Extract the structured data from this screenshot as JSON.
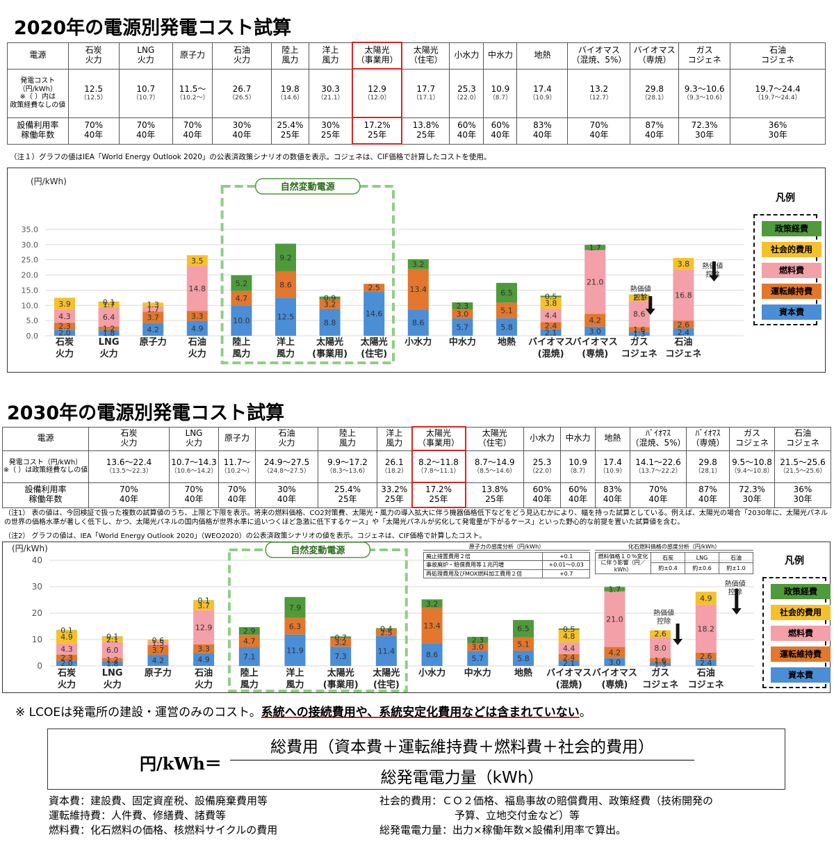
{
  "colors": {
    "policy": "#4f9a3b",
    "social": "#f5c12b",
    "fuel": "#f4a0a8",
    "om": "#e2772d",
    "capital": "#4a8ed6",
    "green_frame": "#8fce84",
    "red": "#e02020"
  },
  "legend": {
    "title": "凡例",
    "items": [
      "政策経費",
      "社会的費用",
      "燃料費",
      "運転維持費",
      "資本費"
    ]
  },
  "s2020": {
    "title": "2020年の電源別発電コスト試算",
    "header": [
      [
        "電源"
      ],
      [
        "石炭",
        "火力"
      ],
      [
        "LNG",
        "火力"
      ],
      [
        "原子力"
      ],
      [
        "石油",
        "火力"
      ],
      [
        "陸上",
        "風力"
      ],
      [
        "洋上",
        "風力"
      ],
      [
        "太陽光",
        "（事業用）"
      ],
      [
        "太陽光",
        "（住宅）"
      ],
      [
        "小水力"
      ],
      [
        "中水力"
      ],
      [
        "地熱"
      ],
      [
        "バイオマス",
        "（混焼、5%）"
      ],
      [
        "バイオマス",
        "（専焼）"
      ],
      [
        "ガス",
        "コジェネ"
      ],
      [
        "石油",
        "コジェネ"
      ]
    ],
    "cost_label": [
      "発電コスト",
      "（円/kWh）",
      "※（ ）内は",
      "政策経費なしの値"
    ],
    "cost": [
      [
        "12.5",
        "（12.5）"
      ],
      [
        "10.7",
        "（10.7）"
      ],
      [
        "11.5～",
        "（10.2～）"
      ],
      [
        "26.7",
        "（26.5）"
      ],
      [
        "19.8",
        "（14.6）"
      ],
      [
        "30.3",
        "（21.1）"
      ],
      [
        "12.9",
        "（12.0）"
      ],
      [
        "17.7",
        "（17.1）"
      ],
      [
        "25.3",
        "（22.0）"
      ],
      [
        "10.9",
        "（8.7）"
      ],
      [
        "17.4",
        "（10.9）"
      ],
      [
        "13.2",
        "（12.7）"
      ],
      [
        "29.8",
        "（28.1）"
      ],
      [
        "9.3～10.6",
        "（9.3～10.6）"
      ],
      [
        "19.7～24.4",
        "（19.7～24.4）"
      ]
    ],
    "util_label": [
      "設備利用率",
      "稼働年数"
    ],
    "util": [
      [
        "70%",
        "40年"
      ],
      [
        "70%",
        "40年"
      ],
      [
        "70%",
        "40年"
      ],
      [
        "30%",
        "40年"
      ],
      [
        "25.4%",
        "25年"
      ],
      [
        "30%",
        "25年"
      ],
      [
        "17.2%",
        "25年"
      ],
      [
        "13.8%",
        "25年"
      ],
      [
        "60%",
        "40年"
      ],
      [
        "60%",
        "40年"
      ],
      [
        "83%",
        "40年"
      ],
      [
        "70%",
        "40年"
      ],
      [
        "87%",
        "40年"
      ],
      [
        "72.3%",
        "30年"
      ],
      [
        "36%",
        "30年"
      ]
    ],
    "note": "（注１）グラフの値はIEA「World Energy Outlook 2020」の公表済政策シナリオの数値を表示。コジェネは、CIF価格で計算したコストを使用。",
    "unit": "(円/kWh)",
    "vre": "自然変動電源"
  },
  "s2030": {
    "title": "2030年の電源別発電コスト試算",
    "header": [
      [
        "電源"
      ],
      [
        "石炭",
        "火力"
      ],
      [
        "LNG",
        "火力"
      ],
      [
        "原子力"
      ],
      [
        "石油",
        "火力"
      ],
      [
        "陸上",
        "風力"
      ],
      [
        "洋上",
        "風力"
      ],
      [
        "太陽光",
        "（事業用）"
      ],
      [
        "太陽光",
        "（住宅）"
      ],
      [
        "小水力"
      ],
      [
        "中水力"
      ],
      [
        "地熱"
      ],
      [
        "ﾊﾞｲｵﾏｽ",
        "（混焼、5%）"
      ],
      [
        "ﾊﾞｲｵﾏｽ",
        "（専焼）"
      ],
      [
        "ガス",
        "コジェネ"
      ],
      [
        "石油",
        "コジェネ"
      ]
    ],
    "cost_label": [
      "発電コスト（円/kWh）",
      "※（ ）は政策経費なしの値"
    ],
    "cost": [
      [
        "13.6～22.4",
        "（13.5～22.3）"
      ],
      [
        "10.7～14.3",
        "（10.6～14.2）"
      ],
      [
        "11.7～",
        "（10.2～）"
      ],
      [
        "24.9～27.5",
        "（24.8～27.5）"
      ],
      [
        "9.9～17.2",
        "（8.3～13.6）"
      ],
      [
        "26.1",
        "（18.2）"
      ],
      [
        "8.2～11.8",
        "（7.8～11.1）"
      ],
      [
        "8.7～14.9",
        "（8.5～14.6）"
      ],
      [
        "25.3",
        "（22.0）"
      ],
      [
        "10.9",
        "（8.7）"
      ],
      [
        "17.4",
        "（10.9）"
      ],
      [
        "14.1～22.6",
        "（13.7～22.2）"
      ],
      [
        "29.8",
        "（28.1）"
      ],
      [
        "9.5～10.8",
        "（9.4～10.8）"
      ],
      [
        "21.5～25.6",
        "（21.5～25.6）"
      ]
    ],
    "util_label": [
      "設備利用率",
      "稼働年数"
    ],
    "util": [
      [
        "70%",
        "40年"
      ],
      [
        "70%",
        "40年"
      ],
      [
        "70%",
        "40年"
      ],
      [
        "30%",
        "40年"
      ],
      [
        "25.4%",
        "25年"
      ],
      [
        "33.2%",
        "25年"
      ],
      [
        "17.2%",
        "25年"
      ],
      [
        "13.8%",
        "25年"
      ],
      [
        "60%",
        "40年"
      ],
      [
        "60%",
        "40年"
      ],
      [
        "83%",
        "40年"
      ],
      [
        "70%",
        "40年"
      ],
      [
        "87%",
        "40年"
      ],
      [
        "72.3%",
        "30年"
      ],
      [
        "36%",
        "30年"
      ]
    ],
    "note1": "（注1） 表の値は、今回検証で扱った複数の試算値のうち、上限と下限を表示。将来の燃料価格、CO2対策費、太陽光・風力の導入拡大に伴う機器価格低下などをどう見込むかにより、幅を持った試算としている。例えば、太陽光の場合「2030年に、太陽光パネルの世界の価格水準が著しく低下し、かつ、太陽光パネルの国内価格が世界水準に追いつくほど急激に低下するケース」や「太陽光パネルが劣化して発電量が下がるケース」といった野心的な前提を置いた試算値を含む。",
    "note2": "（注2） グラフの値は、IEA「World Energy Outlook 2020」（WEO2020）の公表済政策シナリオの値を表示。コジェネは、CIF価格で計算したコスト。",
    "unit": "(円/kWh)",
    "vre": "自然変動電源",
    "nuclear_sens": {
      "title": "原子力の感度分析（円/kWh）",
      "rows": [
        [
          "廃止措置費用２倍",
          "+0.1"
        ],
        [
          "事故廃炉・賠償費用等１兆円増",
          "+0.01～0.03"
        ],
        [
          "再処理費用及びMOX燃料加工費用２倍",
          "+0.7"
        ]
      ]
    },
    "fossil_sens": {
      "title": "化石燃料価格の感度分析（円/kWh）",
      "label": "燃料価格１０％変化に伴う影響（円／kWh）",
      "cols": [
        [
          "石炭",
          "約±0.4"
        ],
        [
          "LNG",
          "約±0.6"
        ],
        [
          "石油",
          "約±1.0"
        ]
      ]
    }
  },
  "chart_data": [
    {
      "type": "bar",
      "stacked": true,
      "title": "2020年の電源別発電コスト試算",
      "ylabel": "(円/kWh)",
      "ylim": [
        0,
        35
      ],
      "yticks": [
        "0.0",
        "5.0",
        "10.0",
        "15.0",
        "20.0",
        "25.0",
        "30.0",
        "35.0"
      ],
      "categories": [
        [
          "石炭",
          "火力"
        ],
        [
          "LNG",
          "火力"
        ],
        [
          "原子力"
        ],
        [
          "石油",
          "火力"
        ],
        [
          "陸上",
          "風力"
        ],
        [
          "洋上",
          "風力"
        ],
        [
          "太陽光",
          "(事業用)"
        ],
        [
          "太陽光",
          "(住宅)"
        ],
        [
          "小水力"
        ],
        [
          "中水力"
        ],
        [
          "地熱"
        ],
        [
          "バイオマス",
          "(混焼)"
        ],
        [
          "バイオマス",
          "(専焼)"
        ],
        [
          "ガス",
          "コジェネ"
        ],
        [
          "石油",
          "コジェネ"
        ]
      ],
      "series": [
        {
          "name": "資本費",
          "values": [
            2.0,
            1.8,
            4.2,
            4.9,
            10.0,
            12.5,
            8.8,
            14.6,
            8.6,
            5.7,
            5.8,
            2.1,
            3.0,
            1.3,
            2.4
          ]
        },
        {
          "name": "運転維持費",
          "values": [
            2.3,
            1.2,
            3.7,
            3.3,
            4.7,
            8.6,
            3.2,
            2.5,
            13.4,
            3.0,
            5.1,
            2.4,
            4.2,
            1.6,
            2.6
          ]
        },
        {
          "name": "燃料費",
          "values": [
            4.3,
            6.4,
            1.7,
            14.8,
            0,
            0,
            0,
            0,
            0,
            0,
            0,
            4.4,
            21.0,
            8.6,
            16.8
          ]
        },
        {
          "name": "社会的費用",
          "values": [
            3.9,
            1.7,
            1.3,
            3.5,
            0,
            0,
            0,
            0,
            0,
            0,
            0,
            3.8,
            0,
            2.1,
            3.8
          ]
        },
        {
          "name": "政策経費",
          "values": [
            0,
            0.1,
            0,
            0,
            5.2,
            9.2,
            0.9,
            0,
            3.2,
            2.3,
            6.5,
            0.5,
            1.7,
            0,
            0
          ]
        }
      ],
      "labels": [
        [
          [
            "2.0"
          ],
          [
            "2.3"
          ],
          [
            "4.3"
          ],
          [
            "3.9"
          ],
          []
        ],
        [
          [
            "1.8"
          ],
          [
            "1.2"
          ],
          [
            "6.4"
          ],
          [
            "1.7"
          ],
          [
            "0.1"
          ]
        ],
        [
          [
            "4.2"
          ],
          [
            "3.7"
          ],
          [
            "1.7"
          ],
          [
            "1.3"
          ],
          []
        ],
        [
          [
            "4.9"
          ],
          [
            "3.3"
          ],
          [
            "14.8"
          ],
          [
            "3.5"
          ],
          []
        ],
        [
          [
            "10.0"
          ],
          [
            "4.7"
          ],
          [],
          [],
          [
            "5.2"
          ]
        ],
        [
          [
            "12.5"
          ],
          [
            "8.6"
          ],
          [],
          [],
          [
            "9.2"
          ]
        ],
        [
          [
            "8.8"
          ],
          [
            "3.2"
          ],
          [],
          [],
          [
            "0.9"
          ]
        ],
        [
          [
            "14.6"
          ],
          [
            "2.5"
          ],
          [],
          [],
          []
        ],
        [
          [
            "8.6"
          ],
          [
            "13.4"
          ],
          [],
          [],
          [
            "3.2"
          ]
        ],
        [
          [
            "5.7"
          ],
          [
            "3.0"
          ],
          [],
          [],
          [
            "2.3"
          ]
        ],
        [
          [
            "5.8"
          ],
          [
            "5.1"
          ],
          [],
          [],
          [
            "6.5"
          ]
        ],
        [
          [
            "2.1"
          ],
          [
            "2.4"
          ],
          [
            "4.4"
          ],
          [
            "3.8"
          ],
          [
            "0.5"
          ]
        ],
        [
          [
            "3.0"
          ],
          [
            "4.2"
          ],
          [
            "21.0"
          ],
          [],
          [
            "1.7"
          ]
        ],
        [
          [
            "1.3"
          ],
          [
            "1.6"
          ],
          [
            "8.6"
          ],
          [
            "2.1"
          ],
          []
        ],
        [
          [
            "2.4"
          ],
          [
            "2.6"
          ],
          [
            "16.8"
          ],
          [
            "3.8"
          ],
          []
        ]
      ],
      "annotations": [
        {
          "text": "熱価値",
          "text2": "控除",
          "category": "ガス コジェネ"
        },
        {
          "text": "熱価値",
          "text2": "控除",
          "category": "石油 コジェネ"
        }
      ]
    },
    {
      "type": "bar",
      "stacked": true,
      "title": "2030年の電源別発電コスト試算",
      "ylabel": "(円/kWh)",
      "ylim": [
        0,
        40
      ],
      "yticks": [
        "0",
        "10",
        "20",
        "30",
        "40"
      ],
      "categories": [
        [
          "石炭",
          "火力"
        ],
        [
          "LNG",
          "火力"
        ],
        [
          "原子力"
        ],
        [
          "石油",
          "火力"
        ],
        [
          "陸上",
          "風力"
        ],
        [
          "洋上",
          "風力"
        ],
        [
          "太陽光",
          "(事業用)"
        ],
        [
          "太陽光",
          "(住宅)"
        ],
        [
          "小水力"
        ],
        [
          "中水力"
        ],
        [
          "地熱"
        ],
        [
          "バイオマス",
          "(混焼)"
        ],
        [
          "バイオマス",
          "(専焼)"
        ],
        [
          "ガス",
          "コジェネ"
        ],
        [
          "石油",
          "コジェネ"
        ]
      ],
      "series": [
        {
          "name": "資本費",
          "values": [
            2.0,
            1.8,
            4.2,
            4.9,
            7.1,
            11.9,
            7.3,
            11.4,
            8.6,
            5.7,
            5.8,
            2.1,
            3.0,
            1.3,
            2.4
          ]
        },
        {
          "name": "運転維持費",
          "values": [
            2.3,
            1.2,
            3.7,
            3.3,
            4.7,
            6.3,
            3.2,
            2.5,
            13.4,
            3.0,
            5.1,
            2.4,
            4.2,
            1.6,
            2.6
          ]
        },
        {
          "name": "燃料費",
          "values": [
            4.3,
            6.0,
            1.5,
            12.9,
            0,
            0,
            0,
            0,
            0,
            0,
            0,
            4.4,
            21.0,
            8.0,
            18.2
          ]
        },
        {
          "name": "社会的費用",
          "values": [
            4.9,
            2.1,
            0.6,
            3.7,
            0,
            0,
            0,
            0,
            0,
            0,
            0,
            4.8,
            0,
            2.6,
            4.9
          ]
        },
        {
          "name": "政策経費",
          "values": [
            0.1,
            0.1,
            0,
            0.1,
            2.9,
            7.9,
            0.7,
            0.4,
            3.2,
            2.3,
            6.5,
            0.5,
            1.7,
            0,
            0
          ]
        }
      ],
      "labels": [
        [
          [
            "2.0"
          ],
          [
            "2.3"
          ],
          [
            "4.3"
          ],
          [
            "4.9"
          ],
          [
            "0.1"
          ]
        ],
        [
          [
            "1.8"
          ],
          [
            "1.2"
          ],
          [
            "6.0"
          ],
          [
            "2.1"
          ],
          [
            "0.1"
          ]
        ],
        [
          [
            "4.2"
          ],
          [
            "3.7"
          ],
          [
            "1.5"
          ],
          [
            "0.6"
          ],
          []
        ],
        [
          [
            "4.9"
          ],
          [
            "3.3"
          ],
          [
            "12.9"
          ],
          [
            "3.7"
          ],
          [
            "0.1"
          ]
        ],
        [
          [
            "7.1"
          ],
          [
            "4.7"
          ],
          [],
          [],
          [
            "2.9"
          ]
        ],
        [
          [
            "11.9"
          ],
          [
            "6.3"
          ],
          [],
          [],
          [
            "7.9"
          ]
        ],
        [
          [
            "7.3"
          ],
          [
            "3.2"
          ],
          [],
          [],
          [
            "0.7"
          ]
        ],
        [
          [
            "11.4"
          ],
          [
            "2.5"
          ],
          [],
          [],
          [
            "0.4"
          ]
        ],
        [
          [
            "8.6"
          ],
          [
            "13.4"
          ],
          [],
          [],
          [
            "3.2"
          ]
        ],
        [
          [
            "5.7"
          ],
          [
            "3.0"
          ],
          [],
          [],
          [
            "2.3"
          ]
        ],
        [
          [
            "5.8"
          ],
          [
            "5.1"
          ],
          [],
          [],
          [
            "6.5"
          ]
        ],
        [
          [
            "2.1"
          ],
          [
            "2.4"
          ],
          [
            "4.4"
          ],
          [
            "4.8"
          ],
          [
            "0.5"
          ]
        ],
        [
          [
            "3.0"
          ],
          [
            "4.2"
          ],
          [
            "21.0"
          ],
          [],
          [
            "1.7"
          ]
        ],
        [
          [
            "1.3"
          ],
          [
            "1.6"
          ],
          [
            "8.0"
          ],
          [
            "2.6"
          ],
          []
        ],
        [
          [
            "2.4"
          ],
          [
            "2.6"
          ],
          [
            "18.2"
          ],
          [
            "4.9"
          ],
          []
        ]
      ],
      "annotations": [
        {
          "text": "熱価値",
          "text2": "控除",
          "category": "ガス コジェネ"
        },
        {
          "text": "熱価値",
          "text2": "控除",
          "category": "石油 コジェネ"
        }
      ]
    }
  ],
  "footer": {
    "lcoe_prefix": "※ LCOEは発電所の建設・運営のみのコスト。",
    "lcoe_emph": "系統への接続費用や、系統安定化費用などは含まれていない",
    "lcoe_suffix": "。",
    "formula_lhs": "円/kWh＝",
    "formula_num": "総費用（資本費＋運転維持費＋燃料費＋社会的費用）",
    "formula_den": "総発電電力量（kWh）",
    "defs_left": [
      "資本費：建設費、固定資産税、設備廃棄費用等",
      "運転維持費：人件費、修繕費、諸費等",
      "燃料費：化石燃料の価格、核燃料サイクルの費用"
    ],
    "defs_right": [
      "社会的費用：ＣＯ２価格、福島事故の賠償費用、政策経費（技術開発の",
      "予算、立地交付金など）等",
      "総発電電力量：出力×稼働年数×設備利用率で算出。"
    ]
  }
}
